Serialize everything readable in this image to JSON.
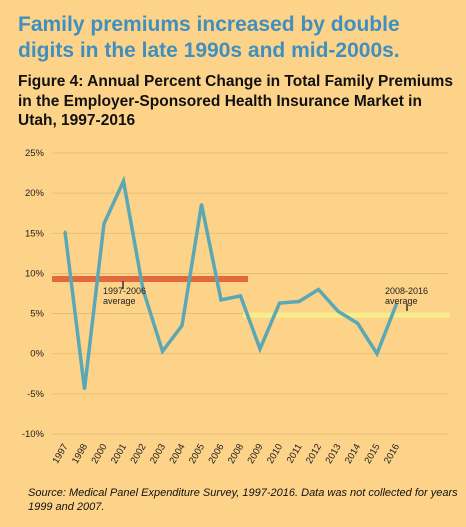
{
  "headline": "Family premiums increased by double digits in the late 1990s and mid-2000s.",
  "figure_title": "Figure 4: Annual Percent Change in Total Family Premiums in the Employer-Sponsored Health Insurance Market in Utah, 1997-2016",
  "source": "Source: Medical Panel Expenditure Survey, 1997-2016. Data was not collected for years 1999 and 2007.",
  "colors": {
    "background": "#fdd389",
    "headline": "#3f8fbf",
    "line": "#5aa8b5",
    "avg_early": "#e2693e",
    "avg_late": "#f6ee8c",
    "grid": "#e0b870"
  },
  "chart_data": {
    "type": "line",
    "title": "Figure 4: Annual Percent Change in Total Family Premiums in the Employer-Sponsored Health Insurance Market in Utah, 1997-2016",
    "xlabel": "",
    "ylabel": "",
    "categories": [
      "1997",
      "1998",
      "2000",
      "2001",
      "2002",
      "2003",
      "2004",
      "2005",
      "2006",
      "2008",
      "2009",
      "2010",
      "2011",
      "2012",
      "2013",
      "2014",
      "2015",
      "2016"
    ],
    "series": [
      {
        "values": [
          15.2,
          -4.4,
          16.2,
          21.5,
          8.0,
          0.3,
          3.5,
          18.6,
          6.7,
          7.2,
          0.6,
          6.3,
          6.5,
          8.0,
          5.3,
          3.8,
          0.0,
          6.2
        ]
      }
    ],
    "ylim": [
      -10,
      25
    ],
    "yticks": [
      "25%",
      "20%",
      "15%",
      "10%",
      "5%",
      "0%",
      "-5%",
      "-10%"
    ],
    "grid": true,
    "averages": [
      {
        "label_line1": "1997-2006",
        "label_line2": "average",
        "value": 9.3,
        "from": "1997",
        "to": "2006"
      },
      {
        "label_line1": "2008-2016",
        "label_line2": "average",
        "value": 4.8,
        "from": "2008",
        "to": "2016"
      }
    ]
  }
}
